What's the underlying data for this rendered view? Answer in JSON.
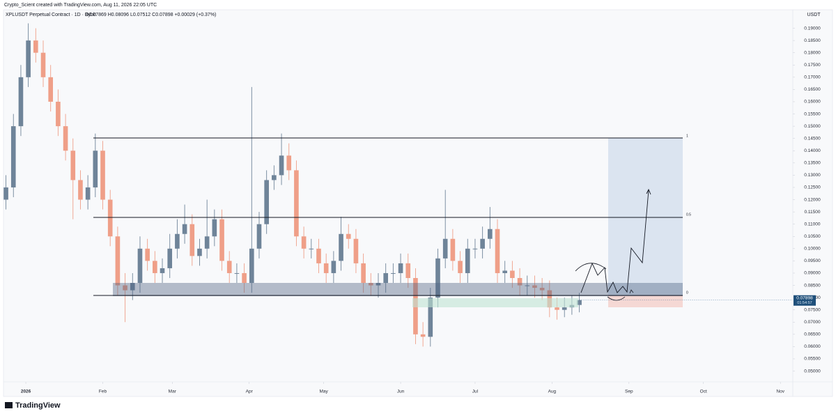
{
  "chart_data": {
    "type": "candlestick",
    "credit": "Crypto_Scient created with TradingView.com, Aug 11, 2026 22:05 UTC",
    "title": "XPLUSDT Perpetual Contract · 1D · Bybit",
    "ohlc_legend": "O0.07869 H0.08096 L0.07512 C0.07898 +0.00029 (+0.37%)",
    "currency": "USDT",
    "last_price": 0.07898,
    "countdown": "01:54:57",
    "brand": "TradingView",
    "annotations": [
      "1",
      "0.5",
      "0"
    ],
    "colors": {
      "up": "#6f8499",
      "down": "#ef9f88"
    },
    "xlim": [
      -9,
      309
    ],
    "ylim": [
      0.0456,
      0.193
    ],
    "xticks": [
      {
        "value": 0,
        "label": "2026"
      },
      {
        "value": 31,
        "label": "Feb"
      },
      {
        "value": 59,
        "label": "Mar"
      },
      {
        "value": 90,
        "label": "Apr"
      },
      {
        "value": 120,
        "label": "May"
      },
      {
        "value": 151,
        "label": "Jun"
      },
      {
        "value": 181,
        "label": "Jul"
      },
      {
        "value": 212,
        "label": "Aug"
      },
      {
        "value": 243,
        "label": "Sep"
      },
      {
        "value": 273,
        "label": "Oct"
      },
      {
        "value": 304,
        "label": "Nov"
      }
    ],
    "yticks": [
      {
        "value": 0.05,
        "label": "0.05000"
      },
      {
        "value": 0.055,
        "label": "0.05500"
      },
      {
        "value": 0.06,
        "label": "0.06000"
      },
      {
        "value": 0.065,
        "label": "0.06500"
      },
      {
        "value": 0.07,
        "label": "0.07000"
      },
      {
        "value": 0.075,
        "label": "0.07500"
      },
      {
        "value": 0.08,
        "label": "0.08000"
      },
      {
        "value": 0.085,
        "label": "0.08500"
      },
      {
        "value": 0.09,
        "label": "0.09000"
      },
      {
        "value": 0.095,
        "label": "0.09500"
      },
      {
        "value": 0.1,
        "label": "0.10000"
      },
      {
        "value": 0.105,
        "label": "0.10500"
      },
      {
        "value": 0.11,
        "label": "0.11000"
      },
      {
        "value": 0.115,
        "label": "0.11500"
      },
      {
        "value": 0.12,
        "label": "0.12000"
      },
      {
        "value": 0.125,
        "label": "0.12500"
      },
      {
        "value": 0.13,
        "label": "0.13000"
      },
      {
        "value": 0.135,
        "label": "0.13500"
      },
      {
        "value": 0.14,
        "label": "0.14000"
      },
      {
        "value": 0.145,
        "label": "0.14500"
      },
      {
        "value": 0.15,
        "label": "0.15000"
      },
      {
        "value": 0.155,
        "label": "0.15500"
      },
      {
        "value": 0.16,
        "label": "0.16000"
      },
      {
        "value": 0.165,
        "label": "0.16500"
      },
      {
        "value": 0.17,
        "label": "0.17000"
      },
      {
        "value": 0.175,
        "label": "0.17500"
      },
      {
        "value": 0.18,
        "label": "0.18000"
      },
      {
        "value": 0.185,
        "label": "0.18500"
      },
      {
        "value": 0.19,
        "label": "0.19000"
      }
    ],
    "x": [
      -8,
      -5,
      -2,
      1,
      4,
      7,
      10,
      13,
      16,
      19,
      22,
      25,
      28,
      31,
      34,
      37,
      40,
      43,
      46,
      49,
      52,
      55,
      58,
      61,
      64,
      67,
      70,
      73,
      76,
      79,
      82,
      85,
      88,
      91,
      94,
      97,
      100,
      103,
      106,
      109,
      112,
      115,
      118,
      121,
      124,
      127,
      130,
      133,
      136,
      139,
      142,
      145,
      148,
      151,
      154,
      157,
      160,
      163,
      166,
      169,
      172,
      175,
      178,
      181,
      184,
      187,
      190,
      193,
      196,
      199,
      202,
      205,
      208,
      211,
      214,
      217,
      220,
      223
    ],
    "open": [
      0.12,
      0.125,
      0.15,
      0.17,
      0.185,
      0.18,
      0.17,
      0.16,
      0.15,
      0.14,
      0.128,
      0.12,
      0.125,
      0.14,
      0.12,
      0.105,
      0.085,
      0.083,
      0.086,
      0.1,
      0.095,
      0.09,
      0.092,
      0.1,
      0.106,
      0.11,
      0.097,
      0.1,
      0.105,
      0.112,
      0.095,
      0.09,
      0.09,
      0.086,
      0.1,
      0.11,
      0.128,
      0.13,
      0.138,
      0.132,
      0.105,
      0.1,
      0.1,
      0.094,
      0.09,
      0.095,
      0.106,
      0.104,
      0.094,
      0.086,
      0.085,
      0.086,
      0.09,
      0.09,
      0.094,
      0.088,
      0.065,
      0.064,
      0.08,
      0.096,
      0.104,
      0.095,
      0.09,
      0.1,
      0.1,
      0.104,
      0.108,
      0.09,
      0.091,
      0.088,
      0.085,
      0.085,
      0.084,
      0.083,
      0.076,
      0.075,
      0.076,
      0.077
    ],
    "high": [
      0.13,
      0.155,
      0.175,
      0.192,
      0.19,
      0.185,
      0.175,
      0.165,
      0.155,
      0.145,
      0.132,
      0.13,
      0.147,
      0.144,
      0.124,
      0.109,
      0.09,
      0.09,
      0.105,
      0.104,
      0.099,
      0.096,
      0.106,
      0.112,
      0.118,
      0.114,
      0.104,
      0.12,
      0.116,
      0.116,
      0.099,
      0.094,
      0.094,
      0.166,
      0.115,
      0.132,
      0.134,
      0.147,
      0.143,
      0.136,
      0.109,
      0.104,
      0.104,
      0.098,
      0.099,
      0.113,
      0.11,
      0.108,
      0.098,
      0.09,
      0.09,
      0.094,
      0.094,
      0.098,
      0.098,
      0.092,
      0.07,
      0.084,
      0.1,
      0.124,
      0.108,
      0.099,
      0.104,
      0.104,
      0.109,
      0.117,
      0.112,
      0.095,
      0.095,
      0.092,
      0.089,
      0.089,
      0.088,
      0.087,
      0.08,
      0.08,
      0.081,
      0.082
    ],
    "low": [
      0.116,
      0.121,
      0.146,
      0.166,
      0.176,
      0.166,
      0.156,
      0.146,
      0.136,
      0.112,
      0.116,
      0.116,
      0.121,
      0.116,
      0.101,
      0.081,
      0.07,
      0.079,
      0.082,
      0.091,
      0.086,
      0.086,
      0.088,
      0.096,
      0.102,
      0.093,
      0.093,
      0.096,
      0.101,
      0.091,
      0.086,
      0.086,
      0.082,
      0.082,
      0.096,
      0.106,
      0.124,
      0.126,
      0.128,
      0.101,
      0.096,
      0.096,
      0.09,
      0.086,
      0.086,
      0.091,
      0.1,
      0.09,
      0.082,
      0.081,
      0.08,
      0.082,
      0.086,
      0.086,
      0.084,
      0.061,
      0.06,
      0.06,
      0.076,
      0.092,
      0.091,
      0.086,
      0.086,
      0.096,
      0.096,
      0.1,
      0.086,
      0.086,
      0.084,
      0.081,
      0.081,
      0.08,
      0.079,
      0.072,
      0.071,
      0.072,
      0.073,
      0.074
    ],
    "close": [
      0.125,
      0.15,
      0.17,
      0.185,
      0.18,
      0.17,
      0.16,
      0.15,
      0.14,
      0.128,
      0.12,
      0.125,
      0.14,
      0.12,
      0.105,
      0.085,
      0.083,
      0.086,
      0.1,
      0.095,
      0.09,
      0.092,
      0.1,
      0.106,
      0.11,
      0.097,
      0.1,
      0.105,
      0.112,
      0.095,
      0.09,
      0.09,
      0.086,
      0.1,
      0.11,
      0.128,
      0.13,
      0.138,
      0.132,
      0.105,
      0.1,
      0.1,
      0.094,
      0.09,
      0.095,
      0.106,
      0.104,
      0.094,
      0.086,
      0.085,
      0.086,
      0.09,
      0.09,
      0.094,
      0.088,
      0.065,
      0.064,
      0.08,
      0.096,
      0.104,
      0.095,
      0.09,
      0.1,
      0.1,
      0.104,
      0.108,
      0.09,
      0.091,
      0.088,
      0.085,
      0.085,
      0.084,
      0.083,
      0.076,
      0.075,
      0.076,
      0.077,
      0.079
    ]
  }
}
